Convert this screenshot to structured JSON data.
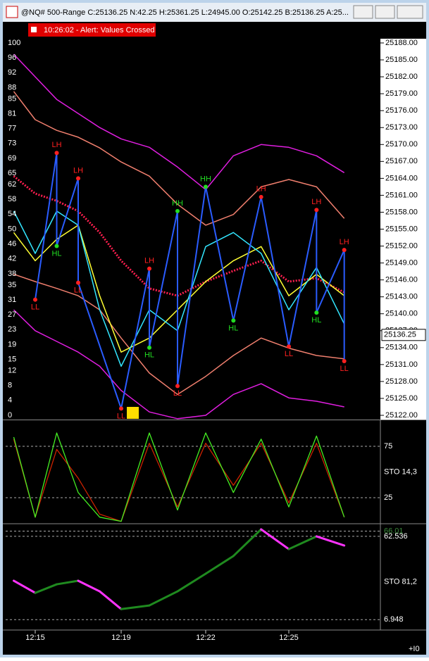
{
  "window": {
    "title": "@NQ# 500-Range C:25136.25 N:42.25 H:25361.25 L:24945.00 O:25142.25 B:25136.25 A:25...",
    "status": "+I0"
  },
  "alert": "10:26:02 - Alert: Values Crossed",
  "chart_data": [
    {
      "type": "line",
      "x": [
        "12:14",
        "12:15",
        "12:16",
        "12:17",
        "12:18",
        "12:19",
        "12:20",
        "12:21",
        "12:22",
        "12:23",
        "12:24",
        "12:25",
        "12:26",
        "12:27"
      ],
      "xticks": [
        "12:15",
        "12:19",
        "12:22",
        "12:25"
      ],
      "ylim": [
        25122,
        25188
      ],
      "yticks": [
        {
          "value": 25188,
          "label": "25188.00"
        },
        {
          "value": 25185,
          "label": "25185.00"
        },
        {
          "value": 25182,
          "label": "25182.00"
        },
        {
          "value": 25179,
          "label": "25179.00"
        },
        {
          "value": 25176,
          "label": "25176.00"
        },
        {
          "value": 25173,
          "label": "25173.00"
        },
        {
          "value": 25170,
          "label": "25170.00"
        },
        {
          "value": 25167,
          "label": "25167.00"
        },
        {
          "value": 25164,
          "label": "25164.00"
        },
        {
          "value": 25161,
          "label": "25161.00"
        },
        {
          "value": 25158,
          "label": "25158.00"
        },
        {
          "value": 25155,
          "label": "25155.00"
        },
        {
          "value": 25152,
          "label": "25152.00"
        },
        {
          "value": 25149,
          "label": "25149.00"
        },
        {
          "value": 25146,
          "label": "25146.00"
        },
        {
          "value": 25143,
          "label": "25143.00"
        },
        {
          "value": 25140,
          "label": "25140.00"
        },
        {
          "value": 25137,
          "label": "25137.00"
        },
        {
          "value": 25134,
          "label": "25134.00"
        },
        {
          "value": 25131,
          "label": "25131.00"
        },
        {
          "value": 25128,
          "label": "25128.00"
        },
        {
          "value": 25125,
          "label": "25125.00"
        },
        {
          "value": 25122,
          "label": "25122.00"
        }
      ],
      "y2lim": [
        0,
        100
      ],
      "y2ticks": [
        100,
        96,
        92,
        88,
        85,
        81,
        77,
        73,
        69,
        65,
        62,
        58,
        54,
        50,
        46,
        42,
        38,
        35,
        31,
        27,
        23,
        19,
        15,
        12,
        8,
        4,
        0
      ],
      "last_price": 25136.25,
      "series": [
        {
          "color": "#e01ee0",
          "values": [
            25186,
            25182,
            25178,
            25175.5,
            25173,
            25171,
            25169.5,
            25166,
            25162,
            25168,
            25170,
            25169.5,
            25168,
            25165
          ]
        },
        {
          "color": "#f07f6e",
          "values": [
            25179.4,
            25174.4,
            25172.5,
            25171.3,
            25169.4,
            25166.9,
            25164.4,
            25159.4,
            25155.7,
            25157.6,
            25162.5,
            25163.8,
            25162.5,
            25156.9
          ]
        },
        {
          "color": "#f07f6e",
          "values": [
            25147,
            25145.7,
            25144.5,
            25143.2,
            25140.7,
            25135.7,
            25129.5,
            25125.7,
            25128.9,
            25132.6,
            25135.7,
            25133.9,
            25132.6,
            25132
          ]
        },
        {
          "color": "#e01ee0",
          "values": [
            25140.7,
            25137,
            25135.1,
            25133.2,
            25130.7,
            25126.4,
            25122.6,
            25121.4,
            25122,
            25125.7,
            25127.6,
            25125.1,
            25124.5,
            25123.5
          ]
        },
        {
          "color": "#ff1f4f",
          "values": [
            25164.4,
            25161.3,
            25160,
            25158.2,
            25154.4,
            25149.4,
            25144.5,
            25143.2,
            25145.7,
            25147.6,
            25149.4,
            25145.7,
            25146.3,
            25143.8
          ]
        },
        {
          "color": "#ffff33",
          "values": [
            25154.4,
            25149.4,
            25153.2,
            25155.7,
            25143.2,
            25133.2,
            25135.7,
            25140.7,
            25145.7,
            25149.4,
            25151.9,
            25143.2,
            25147,
            25143.2
          ]
        },
        {
          "color": "#33e6ff",
          "values": [
            25158.2,
            25150.7,
            25158.2,
            25155.7,
            25140.7,
            25130.7,
            25140.7,
            25137,
            25151.9,
            25154.4,
            25150.7,
            25140.7,
            25148.2,
            25138.2
          ]
        }
      ],
      "zigzag_color": "#2a5cff",
      "pivots": [
        {
          "label": "LL",
          "x": "12:15",
          "value": 25142.5,
          "color": "#ff2020"
        },
        {
          "label": "LH",
          "x": "12:16",
          "value": 25168.5,
          "color": "#ff2020"
        },
        {
          "label": "HL",
          "x": "12:16",
          "value": 25152,
          "color": "#22dd22"
        },
        {
          "label": "LH",
          "x": "12:17",
          "value": 25164,
          "color": "#ff2020"
        },
        {
          "label": "LL",
          "x": "12:17",
          "value": 25145.5,
          "color": "#ff2020"
        },
        {
          "label": "LL",
          "x": "12:19",
          "value": 25123.2,
          "color": "#ff2020"
        },
        {
          "label": "LH",
          "x": "12:20",
          "value": 25148,
          "color": "#ff2020"
        },
        {
          "label": "HL",
          "x": "12:20",
          "value": 25134,
          "color": "#22dd22"
        },
        {
          "label": "HH",
          "x": "12:21",
          "value": 25158.2,
          "color": "#22dd22"
        },
        {
          "label": "LL",
          "x": "12:21",
          "value": 25127.2,
          "color": "#ff2020"
        },
        {
          "label": "HH",
          "x": "12:22",
          "value": 25162.5,
          "color": "#22dd22"
        },
        {
          "label": "HL",
          "x": "12:23",
          "value": 25138.8,
          "color": "#22dd22"
        },
        {
          "label": "LH",
          "x": "12:24",
          "value": 25160.7,
          "color": "#ff2020"
        },
        {
          "label": "LL",
          "x": "12:25",
          "value": 25134.2,
          "color": "#ff2020"
        },
        {
          "label": "LH",
          "x": "12:26",
          "value": 25158.4,
          "color": "#ff2020"
        },
        {
          "label": "HL",
          "x": "12:26",
          "value": 25140.2,
          "color": "#22dd22"
        },
        {
          "label": "LH",
          "x": "12:27",
          "value": 25151.3,
          "color": "#ff2020"
        },
        {
          "label": "LL",
          "x": "12:27",
          "value": 25131.6,
          "color": "#ff2020"
        }
      ]
    },
    {
      "type": "line",
      "label": "STO  14,3",
      "x": [
        "12:14",
        "12:15",
        "12:16",
        "12:17",
        "12:18",
        "12:19",
        "12:20",
        "12:21",
        "12:22",
        "12:23",
        "12:24",
        "12:25",
        "12:26",
        "12:27"
      ],
      "ylim": [
        0,
        100
      ],
      "yticks": [
        75,
        25
      ],
      "series": [
        {
          "color": "#cc2200",
          "values": [
            82,
            6,
            72,
            44,
            9,
            2,
            78,
            16,
            78,
            37,
            78,
            20,
            78,
            6
          ]
        },
        {
          "color": "#44ee22",
          "values": [
            84,
            6,
            88,
            30,
            6,
            2,
            88,
            13,
            88,
            30,
            82,
            16,
            85,
            6
          ]
        }
      ]
    },
    {
      "type": "trend",
      "label": "STO  81,2",
      "x": [
        "12:14",
        "12:15",
        "12:16",
        "12:17",
        "12:18",
        "12:19",
        "12:20",
        "12:21",
        "12:22",
        "12:23",
        "12:24",
        "12:25",
        "12:26",
        "12:27"
      ],
      "ylim": [
        0,
        70
      ],
      "yticks": [
        66.01,
        62.536,
        6.948
      ],
      "colors": {
        "up": "#1f8a1f",
        "down": "#ff33ff"
      },
      "values": [
        32.9,
        24.8,
        30.5,
        32.9,
        25.8,
        14,
        16.4,
        25.8,
        37.6,
        49.4,
        67.2,
        54,
        62.5,
        56.4
      ]
    }
  ]
}
